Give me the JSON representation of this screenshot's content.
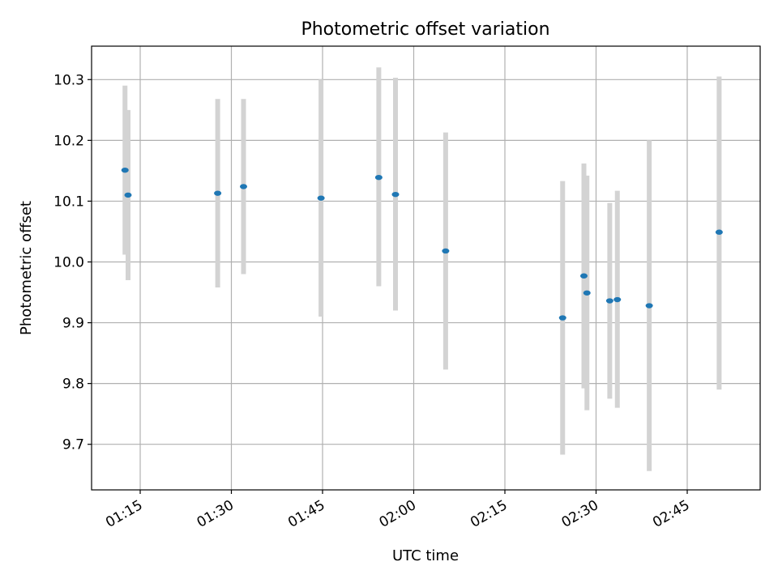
{
  "chart_data": {
    "type": "scatter",
    "title": "Photometric offset variation",
    "xlabel": "UTC time",
    "ylabel": "Photometric offset",
    "xlim": [
      "01:07",
      "02:57"
    ],
    "ylim": [
      9.625,
      10.355
    ],
    "x_ticks": [
      "01:15",
      "01:30",
      "01:45",
      "02:00",
      "02:15",
      "02:30",
      "02:45"
    ],
    "y_ticks": [
      "9.7",
      "9.8",
      "9.9",
      "10.0",
      "10.1",
      "10.2",
      "10.3"
    ],
    "grid": true,
    "point_color": "#1f77b4",
    "errorbar_color": "#d3d3d3",
    "series": [
      {
        "points": [
          {
            "x": "01:12:30",
            "y": 10.151,
            "low": 10.012,
            "high": 10.29
          },
          {
            "x": "01:13:00",
            "y": 10.11,
            "low": 9.97,
            "high": 10.25
          },
          {
            "x": "01:27:45",
            "y": 10.113,
            "low": 9.958,
            "high": 10.268
          },
          {
            "x": "01:32:00",
            "y": 10.124,
            "low": 9.98,
            "high": 10.268
          },
          {
            "x": "01:44:45",
            "y": 10.105,
            "low": 9.91,
            "high": 10.3
          },
          {
            "x": "01:54:15",
            "y": 10.139,
            "low": 9.96,
            "high": 10.32
          },
          {
            "x": "01:57:00",
            "y": 10.111,
            "low": 9.92,
            "high": 10.303
          },
          {
            "x": "02:05:15",
            "y": 10.018,
            "low": 9.823,
            "high": 10.213
          },
          {
            "x": "02:24:30",
            "y": 9.908,
            "low": 9.683,
            "high": 10.133
          },
          {
            "x": "02:28:00",
            "y": 9.977,
            "low": 9.792,
            "high": 10.162
          },
          {
            "x": "02:28:30",
            "y": 9.949,
            "low": 9.756,
            "high": 10.142
          },
          {
            "x": "02:32:15",
            "y": 9.936,
            "low": 9.775,
            "high": 10.097
          },
          {
            "x": "02:33:30",
            "y": 9.938,
            "low": 9.76,
            "high": 10.117
          },
          {
            "x": "02:38:45",
            "y": 9.928,
            "low": 9.656,
            "high": 10.2
          },
          {
            "x": "02:50:15",
            "y": 10.049,
            "low": 9.79,
            "high": 10.305
          }
        ]
      }
    ]
  }
}
